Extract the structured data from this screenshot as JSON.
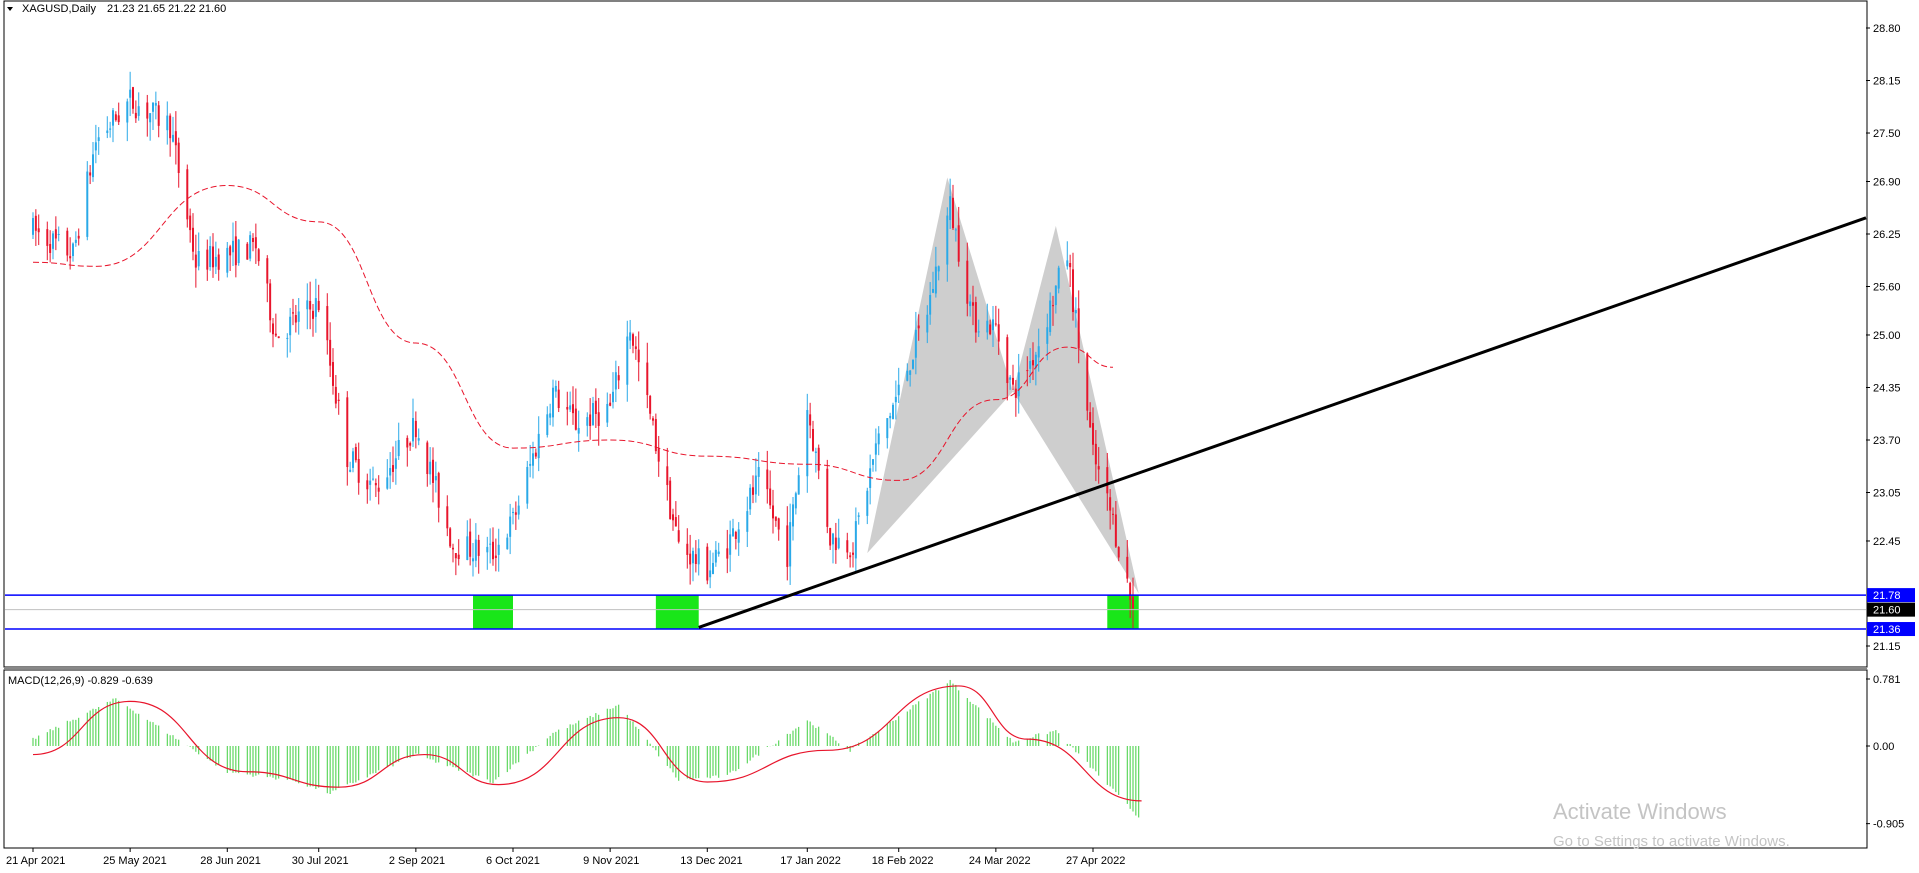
{
  "header": {
    "symbol": "XAGUSD,Daily",
    "ohlc": "21.23 21.65 21.22 21.60"
  },
  "macd_header": "MACD(12,26,9) -0.829 -0.639",
  "watermark": {
    "title": "Activate Windows",
    "subtitle": "Go to Settings to activate Windows."
  },
  "colors": {
    "bull": "#2aa9e8",
    "bear": "#e8152c",
    "ma": "#e8152c",
    "zone": "#19e619",
    "hline": "#0000ff",
    "trend": "#000000",
    "pattern": "#bdbdbd",
    "hist": "#3fcf3f",
    "signal": "#e8152c"
  },
  "chart_data": [
    {
      "type": "candlestick",
      "symbol": "XAGUSD",
      "timeframe": "Daily",
      "ylim": [
        20.9,
        29.1
      ],
      "y_ticks": [
        "28.80",
        "28.15",
        "27.50",
        "26.90",
        "26.25",
        "25.60",
        "25.00",
        "24.35",
        "23.70",
        "23.05",
        "22.45",
        "21.15"
      ],
      "x_ticks": [
        "21 Apr 2021",
        "25 May 2021",
        "28 Jun 2021",
        "30 Jul 2021",
        "2 Sep 2021",
        "6 Oct 2021",
        "9 Nov 2021",
        "13 Dec 2021",
        "17 Jan 2022",
        "18 Feb 2022",
        "24 Mar 2022",
        "27 Apr 2022"
      ],
      "last_price": "21.60",
      "levels": [
        {
          "price": 21.78,
          "label": "21.78"
        },
        {
          "price": 21.36,
          "label": "21.36"
        }
      ],
      "close_path": [
        {
          "date": "21 Apr 2021",
          "close": 26.3
        },
        {
          "date": "5 May 2021",
          "close": 26.0
        },
        {
          "date": "13 May 2021",
          "close": 27.4
        },
        {
          "date": "25 May 2021",
          "close": 27.9
        },
        {
          "date": "8 Jun 2021",
          "close": 27.6
        },
        {
          "date": "17 Jun 2021",
          "close": 25.9
        },
        {
          "date": "28 Jun 2021",
          "close": 26.0
        },
        {
          "date": "8 Jul 2021",
          "close": 26.1
        },
        {
          "date": "15 Jul 2021",
          "close": 25.0
        },
        {
          "date": "30 Jul 2021",
          "close": 25.4
        },
        {
          "date": "9 Aug 2021",
          "close": 23.5
        },
        {
          "date": "19 Aug 2021",
          "close": 23.1
        },
        {
          "date": "2 Sep 2021",
          "close": 23.9
        },
        {
          "date": "15 Sep 2021",
          "close": 22.4
        },
        {
          "date": "29 Sep 2021",
          "close": 22.3
        },
        {
          "date": "6 Oct 2021",
          "close": 22.7
        },
        {
          "date": "20 Oct 2021",
          "close": 24.3
        },
        {
          "date": "28 Oct 2021",
          "close": 23.9
        },
        {
          "date": "9 Nov 2021",
          "close": 24.1
        },
        {
          "date": "16 Nov 2021",
          "close": 25.1
        },
        {
          "date": "26 Nov 2021",
          "close": 23.5
        },
        {
          "date": "3 Dec 2021",
          "close": 22.4
        },
        {
          "date": "13 Dec 2021",
          "close": 22.1
        },
        {
          "date": "20 Dec 2021",
          "close": 22.4
        },
        {
          "date": "31 Dec 2021",
          "close": 23.2
        },
        {
          "date": "10 Jan 2022",
          "close": 22.3
        },
        {
          "date": "17 Jan 2022",
          "close": 24.1
        },
        {
          "date": "25 Jan 2022",
          "close": 22.5
        },
        {
          "date": "2 Feb 2022",
          "close": 22.4
        },
        {
          "date": "10 Feb 2022",
          "close": 23.6
        },
        {
          "date": "18 Feb 2022",
          "close": 24.3
        },
        {
          "date": "28 Feb 2022",
          "close": 25.3
        },
        {
          "date": "8 Mar 2022",
          "close": 26.6
        },
        {
          "date": "16 Mar 2022",
          "close": 25.2
        },
        {
          "date": "24 Mar 2022",
          "close": 25.1
        },
        {
          "date": "30 Mar 2022",
          "close": 24.3
        },
        {
          "date": "7 Apr 2022",
          "close": 24.8
        },
        {
          "date": "18 Apr 2022",
          "close": 26.0
        },
        {
          "date": "27 Apr 2022",
          "close": 23.5
        },
        {
          "date": "4 May 2022",
          "close": 22.7
        },
        {
          "date": "11 May 2022",
          "close": 21.6
        }
      ],
      "moving_average_path": [
        {
          "date": "21 Apr 2021",
          "value": 25.9
        },
        {
          "date": "13 May 2021",
          "value": 25.85
        },
        {
          "date": "28 Jun 2021",
          "value": 26.85
        },
        {
          "date": "30 Jul 2021",
          "value": 26.4
        },
        {
          "date": "2 Sep 2021",
          "value": 24.9
        },
        {
          "date": "6 Oct 2021",
          "value": 23.6
        },
        {
          "date": "9 Nov 2021",
          "value": 23.7
        },
        {
          "date": "13 Dec 2021",
          "value": 23.5
        },
        {
          "date": "17 Jan 2022",
          "value": 23.4
        },
        {
          "date": "18 Feb 2022",
          "value": 23.2
        },
        {
          "date": "24 Mar 2022",
          "value": 24.2
        },
        {
          "date": "18 Apr 2022",
          "value": 24.85
        },
        {
          "date": "4 May 2022",
          "value": 24.6
        }
      ],
      "harmonic_pattern": [
        {
          "date": "7 Feb 2022",
          "price": 22.3
        },
        {
          "date": "7 Mar 2022",
          "price": 26.95
        },
        {
          "date": "30 Mar 2022",
          "price": 24.3
        },
        {
          "date": "14 Apr 2022",
          "price": 26.35
        },
        {
          "date": "13 May 2022",
          "price": 21.8
        }
      ],
      "trendline": [
        {
          "date": "10 Dec 2021",
          "price": 21.38
        },
        {
          "price": 26.45
        }
      ],
      "demand_zones": [
        {
          "from": "22 Sep 2021",
          "to": "6 Oct 2021",
          "low": 21.36,
          "high": 21.78
        },
        {
          "from": "25 Nov 2021",
          "to": "10 Dec 2021",
          "low": 21.36,
          "high": 21.78
        },
        {
          "from": "2 May 2022",
          "to": "13 May 2022",
          "low": 21.36,
          "high": 21.78
        }
      ]
    },
    {
      "type": "bar",
      "name": "MACD(12,26,9)",
      "ylim": [
        -0.95,
        0.82
      ],
      "y_ticks": [
        "0.781",
        "0.00",
        "-0.905"
      ],
      "macd": -0.829,
      "signal": -0.639,
      "histogram_path": [
        {
          "date": "21 Apr 2021",
          "value": 0.08
        },
        {
          "date": "20 May 2021",
          "value": 0.55
        },
        {
          "date": "28 Jun 2021",
          "value": -0.3
        },
        {
          "date": "21 Jul 2021",
          "value": -0.4
        },
        {
          "date": "3 Aug 2021",
          "value": -0.55
        },
        {
          "date": "2 Sep 2021",
          "value": -0.1
        },
        {
          "date": "29 Sep 2021",
          "value": -0.42
        },
        {
          "date": "20 Oct 2021",
          "value": 0.15
        },
        {
          "date": "12 Nov 2021",
          "value": 0.48
        },
        {
          "date": "3 Dec 2021",
          "value": -0.4
        },
        {
          "date": "20 Dec 2021",
          "value": -0.35
        },
        {
          "date": "17 Jan 2022",
          "value": 0.3
        },
        {
          "date": "1 Feb 2022",
          "value": -0.05
        },
        {
          "date": "8 Mar 2022",
          "value": 0.76
        },
        {
          "date": "30 Mar 2022",
          "value": 0.05
        },
        {
          "date": "14 Apr 2022",
          "value": 0.18
        },
        {
          "date": "13 May 2022",
          "value": -0.83
        }
      ],
      "signal_path": [
        {
          "date": "21 Apr 2021",
          "value": -0.1
        },
        {
          "date": "25 May 2021",
          "value": 0.52
        },
        {
          "date": "5 Jul 2021",
          "value": -0.3
        },
        {
          "date": "6 Aug 2021",
          "value": -0.48
        },
        {
          "date": "5 Sep 2021",
          "value": -0.1
        },
        {
          "date": "1 Oct 2021",
          "value": -0.45
        },
        {
          "date": "12 Nov 2021",
          "value": 0.33
        },
        {
          "date": "13 Dec 2021",
          "value": -0.42
        },
        {
          "date": "24 Jan 2022",
          "value": -0.05
        },
        {
          "date": "11 Mar 2022",
          "value": 0.7
        },
        {
          "date": "4 Apr 2022",
          "value": 0.08
        },
        {
          "date": "14 May 2022",
          "value": -0.64
        }
      ]
    }
  ]
}
